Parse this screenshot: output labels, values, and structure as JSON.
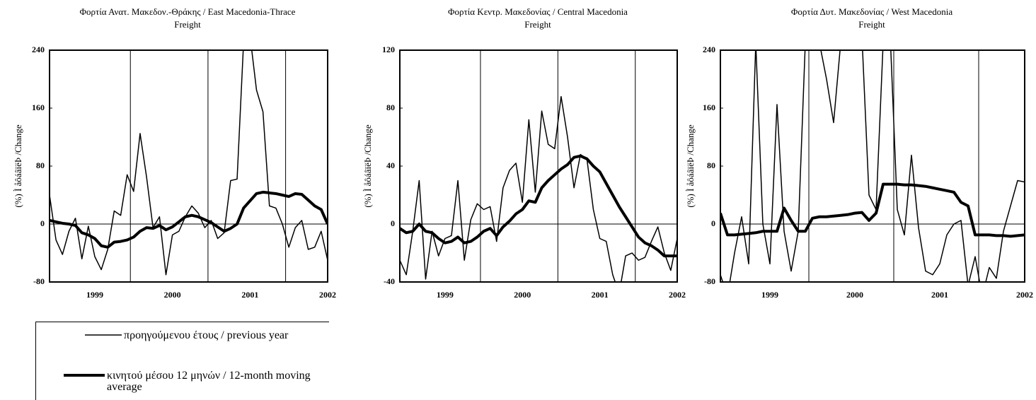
{
  "chart_data": [
    {
      "type": "line",
      "title": "Φορτία Ανατ. Μακεδον.-Θράκης / East Macedonia-Thrace\nFreight",
      "ylabel": "(%) Ì åôáâïëÞ  /Change",
      "categories": [
        null,
        null,
        null,
        null,
        null,
        null,
        null,
        "1999",
        null,
        null,
        null,
        null,
        null,
        null,
        null,
        null,
        null,
        null,
        null,
        "2000",
        null,
        null,
        null,
        null,
        null,
        null,
        null,
        null,
        null,
        null,
        null,
        "2001",
        null,
        null,
        null,
        null,
        null,
        null,
        null,
        null,
        null,
        null,
        null,
        "2002"
      ],
      "ylim": [
        -80,
        240
      ],
      "yticks": [
        -80,
        0,
        80,
        160,
        240
      ],
      "series": [
        {
          "name": "προηγούμενου έτους / previous year",
          "color": "#000000",
          "width": 1.5,
          "values": [
            40,
            -22,
            -42,
            -10,
            8,
            -48,
            -3,
            -45,
            -63,
            -35,
            18,
            12,
            68,
            45,
            125,
            65,
            -5,
            10,
            -70,
            -15,
            -10,
            10,
            25,
            15,
            -5,
            5,
            -20,
            -12,
            60,
            62,
            250,
            260,
            185,
            155,
            25,
            22,
            0,
            -32,
            -5,
            5,
            -35,
            -32,
            -10,
            -50
          ]
        },
        {
          "name": "κινητού μέσου 12 μηνών / 12-month moving average",
          "color": "#000000",
          "width": 4,
          "values": [
            5,
            3,
            1,
            0,
            -2,
            -12,
            -15,
            -20,
            -30,
            -32,
            -25,
            -24,
            -22,
            -18,
            -10,
            -5,
            -6,
            -2,
            -8,
            -4,
            3,
            10,
            12,
            10,
            6,
            2,
            -4,
            -10,
            -6,
            0,
            22,
            32,
            42,
            44,
            43,
            42,
            40,
            38,
            42,
            41,
            33,
            25,
            20,
            0
          ]
        }
      ]
    },
    {
      "type": "line",
      "title": "Φορτία Κεντρ. Μακεδονίας / Central Macedonia\nFreight",
      "ylabel": "(%) Ì åôáâïëÞ  /Change",
      "categories": [
        null,
        null,
        null,
        null,
        null,
        null,
        null,
        "1999",
        null,
        null,
        null,
        null,
        null,
        null,
        null,
        null,
        null,
        null,
        null,
        "2000",
        null,
        null,
        null,
        null,
        null,
        null,
        null,
        null,
        null,
        null,
        null,
        "2001",
        null,
        null,
        null,
        null,
        null,
        null,
        null,
        null,
        null,
        null,
        null,
        "2002"
      ],
      "ylim": [
        -40,
        120
      ],
      "yticks": [
        -40,
        0,
        40,
        80,
        120
      ],
      "series": [
        {
          "color": "#000000",
          "width": 1.5,
          "values": [
            -25,
            -35,
            -5,
            30,
            -38,
            -5,
            -22,
            -10,
            -8,
            30,
            -25,
            3,
            14,
            10,
            12,
            -12,
            25,
            37,
            42,
            15,
            72,
            22,
            78,
            55,
            52,
            88,
            60,
            25,
            48,
            45,
            10,
            -10,
            -12,
            -35,
            -48,
            -22,
            -20,
            -25,
            -23,
            -12,
            -2,
            -20,
            -32,
            -10
          ]
        },
        {
          "color": "#000000",
          "width": 4,
          "values": [
            -3,
            -6,
            -5,
            0,
            -5,
            -6,
            -10,
            -13,
            -12,
            -9,
            -13,
            -12,
            -9,
            -5,
            -3,
            -8,
            -2,
            2,
            7,
            10,
            16,
            15,
            25,
            30,
            34,
            38,
            41,
            46,
            47,
            45,
            40,
            36,
            28,
            20,
            12,
            5,
            -2,
            -9,
            -13,
            -15,
            -18,
            -22,
            -22,
            -22
          ]
        }
      ]
    },
    {
      "type": "line",
      "title": "Φορτία Δυτ. Μακεδονίας / West Macedonia\nFreight",
      "ylabel": "(%) Ì åôáâïëÞ  /Change",
      "categories": [
        null,
        null,
        null,
        null,
        null,
        null,
        null,
        "1999",
        null,
        null,
        null,
        null,
        null,
        null,
        null,
        null,
        null,
        null,
        null,
        "2000",
        null,
        null,
        null,
        null,
        null,
        null,
        null,
        null,
        null,
        null,
        null,
        "2001",
        null,
        null,
        null,
        null,
        null,
        null,
        null,
        null,
        null,
        null,
        null,
        "2002"
      ],
      "ylim": [
        -80,
        240
      ],
      "yticks": [
        -80,
        0,
        80,
        160,
        240
      ],
      "series": [
        {
          "color": "#000000",
          "width": 1.5,
          "values": [
            -70,
            -100,
            -40,
            10,
            -55,
            250,
            0,
            -55,
            165,
            -10,
            -65,
            -10,
            250,
            260,
            250,
            200,
            140,
            250,
            255,
            250,
            260,
            40,
            20,
            250,
            260,
            20,
            -15,
            95,
            -5,
            -65,
            -70,
            -55,
            -15,
            0,
            5,
            -85,
            -45,
            -100,
            -60,
            -75,
            -10,
            25,
            60,
            58
          ]
        },
        {
          "color": "#000000",
          "width": 4,
          "values": [
            15,
            -15,
            -15,
            -14,
            -13,
            -12,
            -10,
            -10,
            -10,
            22,
            5,
            -10,
            -10,
            8,
            10,
            10,
            11,
            12,
            13,
            15,
            16,
            5,
            15,
            55,
            55,
            55,
            54,
            54,
            53,
            52,
            50,
            48,
            46,
            44,
            30,
            25,
            -15,
            -15,
            -15,
            -16,
            -16,
            -17,
            -16,
            -15
          ]
        }
      ]
    }
  ]
}
